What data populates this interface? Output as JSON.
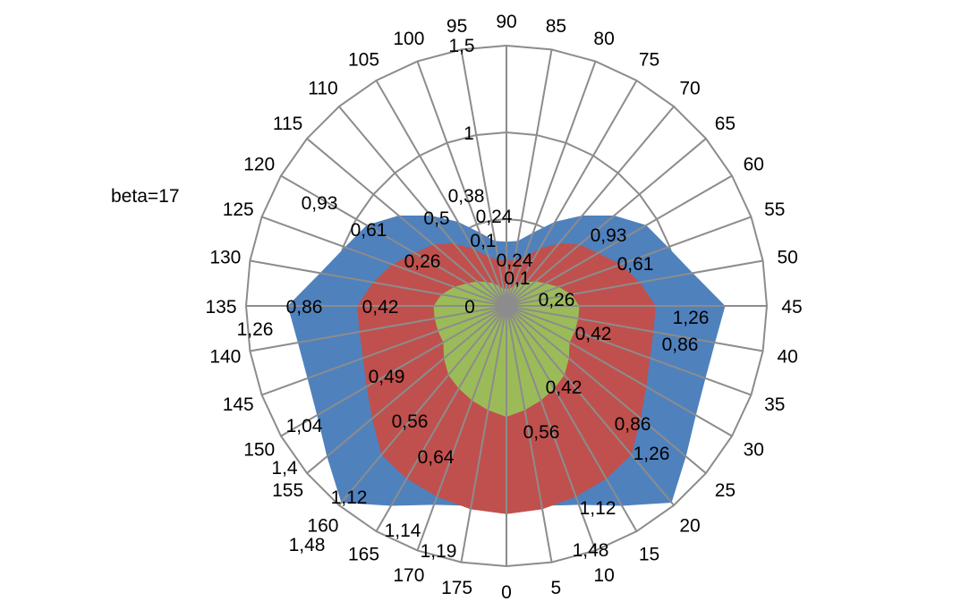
{
  "chart_data": {
    "type": "radar",
    "filled": true,
    "legend_label": "beta=17",
    "categories": [
      90,
      85,
      80,
      75,
      70,
      65,
      60,
      55,
      50,
      45,
      40,
      35,
      30,
      25,
      20,
      15,
      10,
      5,
      0,
      175,
      170,
      165,
      160,
      155,
      150,
      145,
      140,
      135,
      130,
      125,
      120,
      115,
      110,
      105,
      100,
      95
    ],
    "axis": {
      "min": 0,
      "max": 1.5,
      "ticks": [
        "0",
        "0,5",
        "1",
        "1,5"
      ],
      "grid": true
    },
    "series": [
      {
        "color": "#4F81BD",
        "values": [
          0.37,
          0.38,
          0.45,
          0.56,
          0.68,
          0.81,
          0.93,
          0.99,
          1.09,
          1.26,
          1.22,
          1.22,
          1.26,
          1.35,
          1.48,
          1.33,
          1.22,
          1.17,
          1.15,
          1.17,
          1.22,
          1.33,
          1.48,
          1.35,
          1.26,
          1.22,
          1.22,
          1.26,
          1.09,
          0.99,
          0.93,
          0.81,
          0.68,
          0.56,
          0.45,
          0.38
        ]
      },
      {
        "color": "#C0504D",
        "values": [
          0.26,
          0.27,
          0.3,
          0.38,
          0.47,
          0.55,
          0.61,
          0.7,
          0.78,
          0.86,
          0.86,
          0.88,
          0.93,
          1.01,
          1.12,
          1.15,
          1.17,
          1.19,
          1.2,
          1.19,
          1.17,
          1.15,
          1.12,
          1.01,
          0.93,
          0.88,
          0.86,
          0.86,
          0.78,
          0.7,
          0.61,
          0.55,
          0.47,
          0.38,
          0.3,
          0.27
        ]
      },
      {
        "color": "#9BBB59",
        "values": [
          0.1,
          0.1,
          0.12,
          0.15,
          0.18,
          0.22,
          0.26,
          0.32,
          0.38,
          0.42,
          0.42,
          0.42,
          0.42,
          0.47,
          0.52,
          0.55,
          0.58,
          0.61,
          0.64,
          0.61,
          0.58,
          0.55,
          0.52,
          0.47,
          0.42,
          0.42,
          0.42,
          0.42,
          0.38,
          0.32,
          0.26,
          0.22,
          0.18,
          0.15,
          0.12,
          0.1
        ]
      }
    ],
    "data_labels": [
      "0,38",
      "0,24",
      "0,1",
      "0,24",
      "0,1",
      "0,26",
      "0,93",
      "0,61",
      "0,93",
      "0,61",
      "0,26",
      "1,26",
      "0,86",
      "0,42",
      "0,42",
      "0,86",
      "1,26",
      "0,56",
      "1,12",
      "1,48",
      "1,26",
      "0,86",
      "0,42",
      "0,49",
      "1,04",
      "0,56",
      "0,64",
      "1,4",
      "1,12",
      "1,48",
      "1,14",
      "1,19"
    ]
  }
}
